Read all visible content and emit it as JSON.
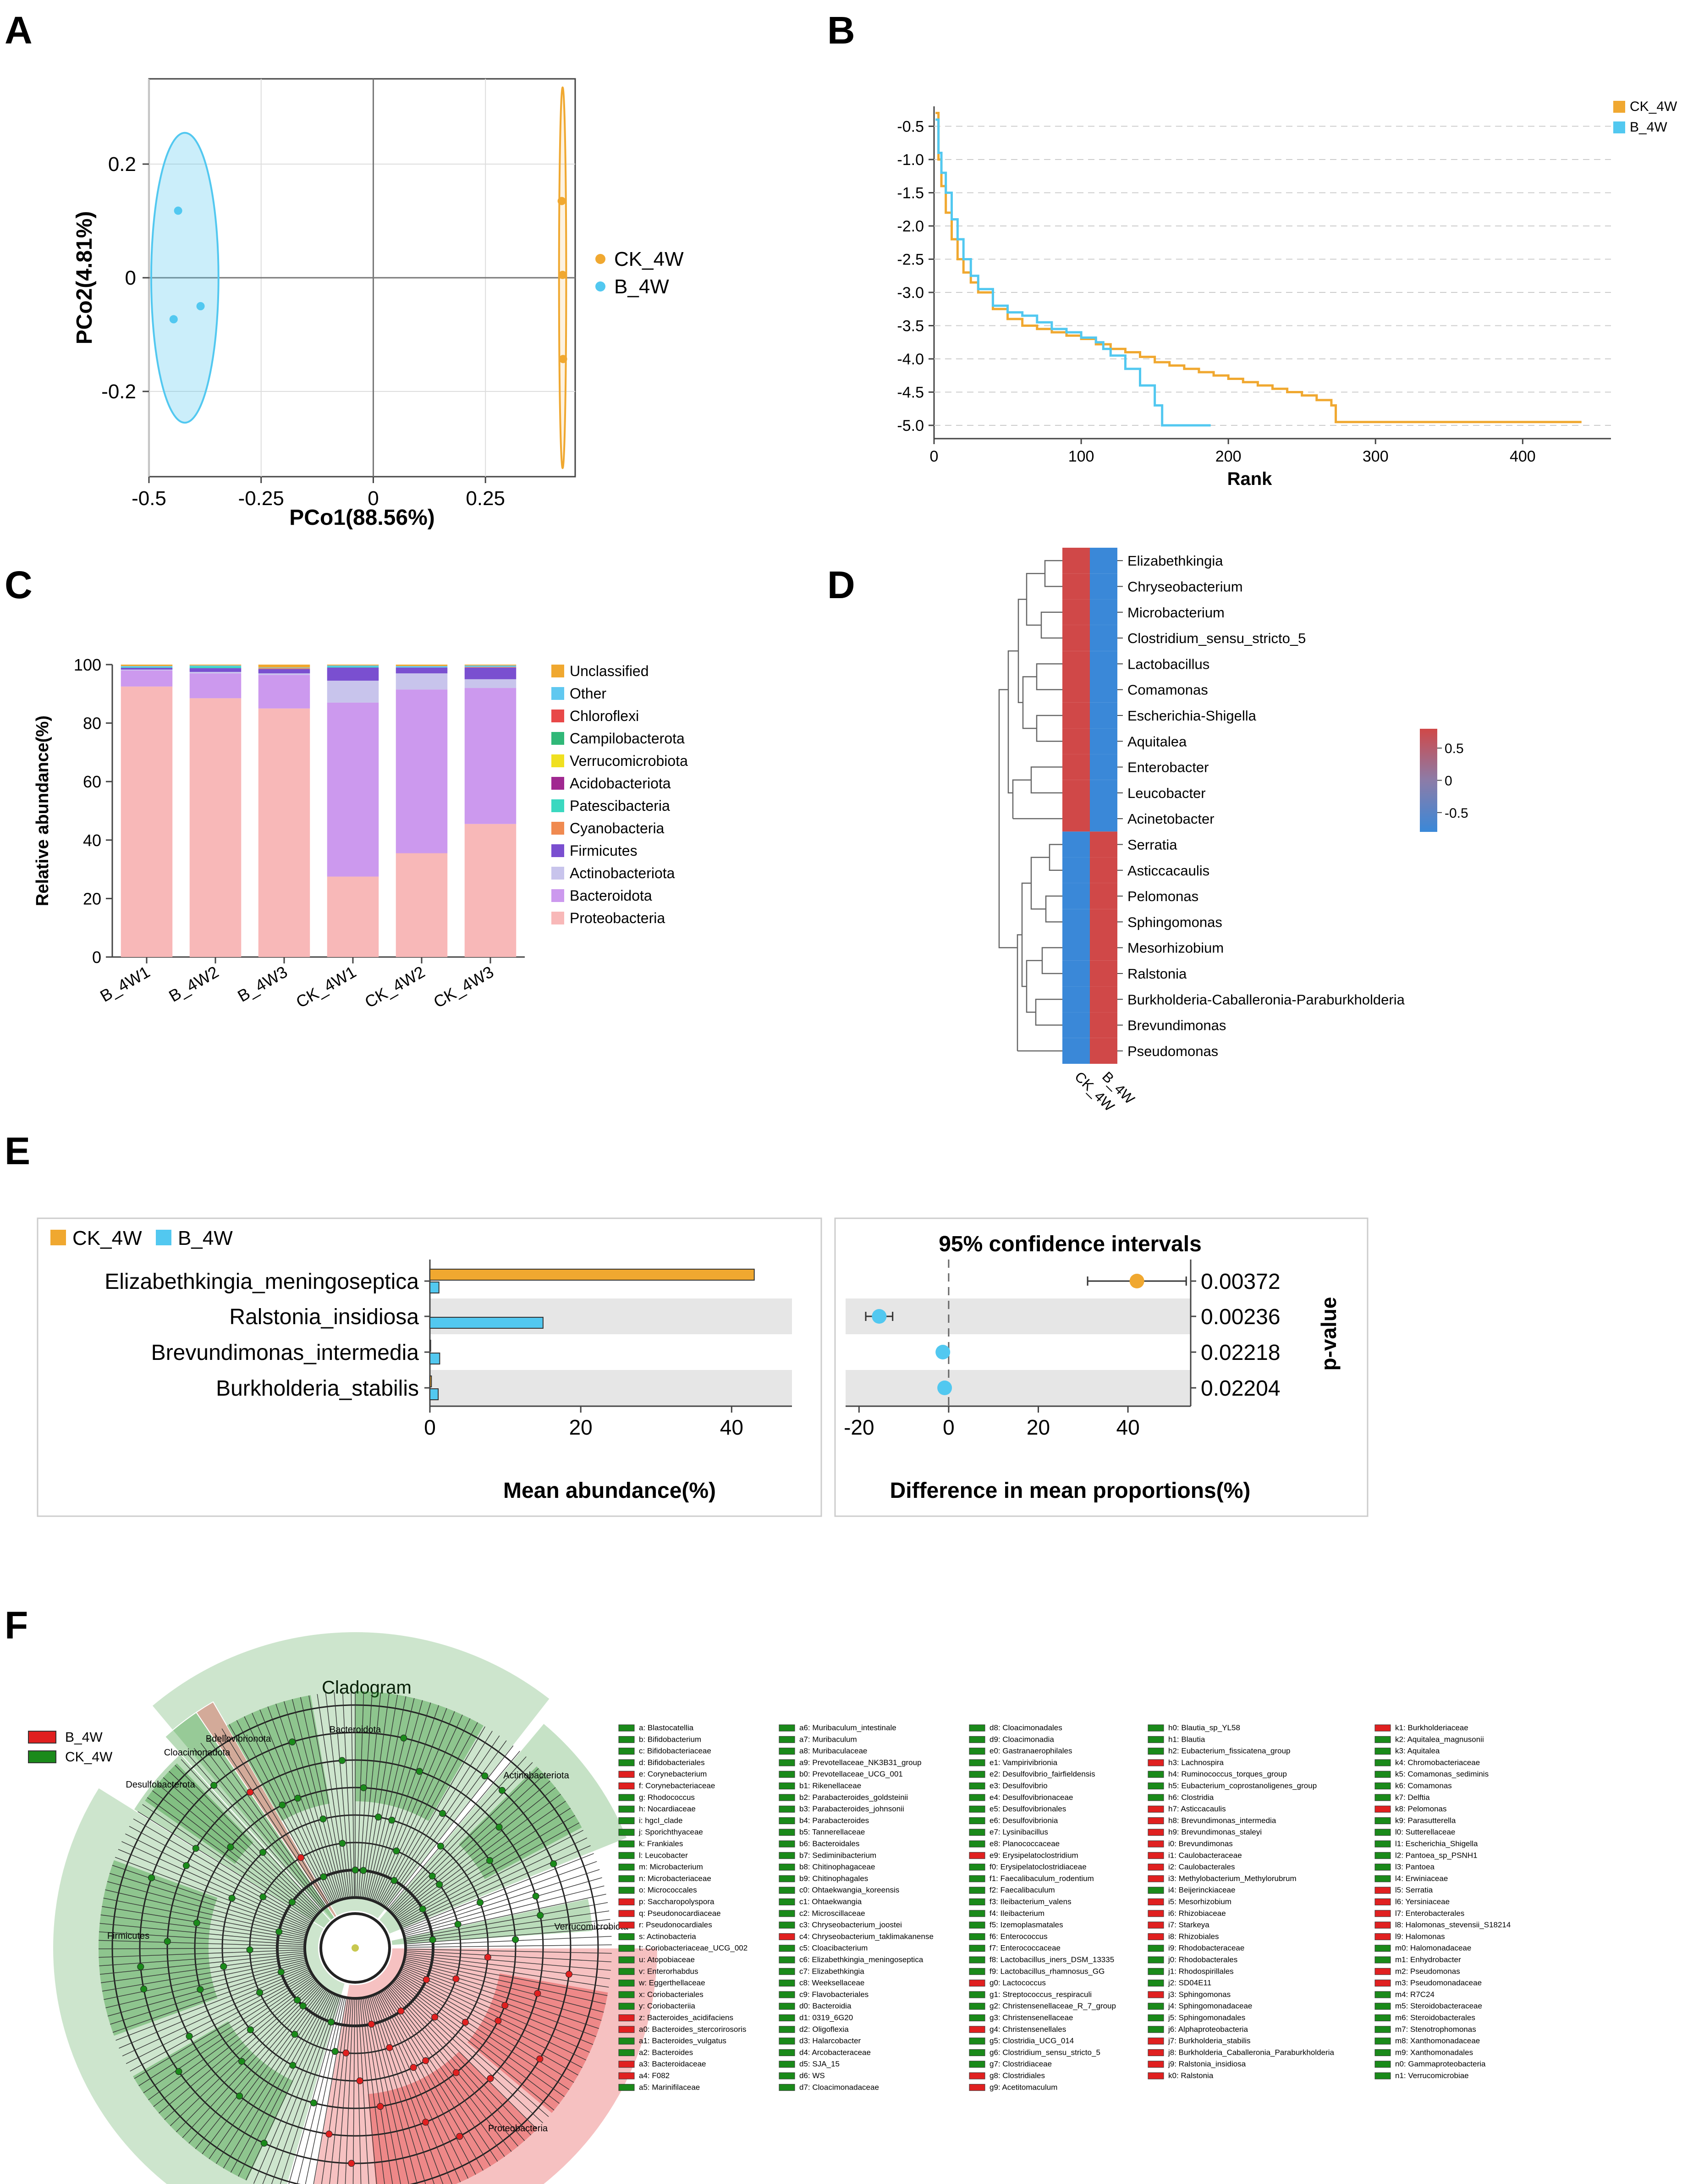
{
  "panels": {
    "a": "A",
    "b": "B",
    "c": "C",
    "d": "D",
    "e": "E",
    "f": "F"
  },
  "chart_data": [
    {
      "id": "A",
      "type": "scatter",
      "xlabel": "PCo1(88.56%)",
      "ylabel": "PCo2(4.81%)",
      "xlim": [
        -0.5,
        0.45
      ],
      "ylim": [
        -0.35,
        0.35
      ],
      "xticks": [
        "-0.5",
        "-0.25",
        "0",
        "0.25"
      ],
      "xtick_values": [
        -0.5,
        -0.25,
        0,
        0.25
      ],
      "yticks": [
        "0.2",
        "0",
        "-0.2"
      ],
      "ytick_values": [
        0.2,
        0,
        -0.2
      ],
      "series": [
        {
          "name": "CK_4W",
          "color": "#f0a830",
          "points": [
            [
              0.42,
              0.135
            ],
            [
              0.422,
              0.005
            ],
            [
              0.423,
              -0.143
            ]
          ],
          "ellipse": {
            "cx": 0.422,
            "cy": 0.0,
            "rx": 0.008,
            "ry": 0.335
          }
        },
        {
          "name": "B_4W",
          "color": "#52c8f0",
          "points": [
            [
              -0.435,
              0.118
            ],
            [
              -0.385,
              -0.05
            ],
            [
              -0.445,
              -0.073
            ]
          ],
          "ellipse": {
            "cx": -0.42,
            "cy": 0.0,
            "rx": 0.075,
            "ry": 0.255
          }
        }
      ]
    },
    {
      "id": "B",
      "type": "line",
      "xlabel": "Rank",
      "ylabel": "",
      "xlim": [
        0,
        460
      ],
      "ylim": [
        -5.2,
        -0.2
      ],
      "xticks": [
        "0",
        "100",
        "200",
        "300",
        "400"
      ],
      "xtick_values": [
        0,
        100,
        200,
        300,
        400
      ],
      "yticks": [
        "-0.5",
        "-1.0",
        "-1.5",
        "-2.0",
        "-2.5",
        "-3.0",
        "-3.5",
        "-4.0",
        "-4.5",
        "-5.0"
      ],
      "ytick_values": [
        -0.5,
        -1.0,
        -1.5,
        -2.0,
        -2.5,
        -3.0,
        -3.5,
        -4.0,
        -4.5,
        -5.0
      ],
      "series": [
        {
          "name": "CK_4W",
          "color": "#f0a830",
          "x": [
            1,
            3,
            5,
            8,
            12,
            16,
            20,
            25,
            30,
            40,
            50,
            60,
            70,
            80,
            90,
            100,
            110,
            120,
            130,
            140,
            150,
            160,
            170,
            180,
            190,
            200,
            210,
            220,
            230,
            240,
            250,
            260,
            270,
            273,
            280,
            300,
            350,
            400,
            440
          ],
          "y": [
            -0.3,
            -1.0,
            -1.4,
            -1.8,
            -2.2,
            -2.5,
            -2.7,
            -2.85,
            -3.0,
            -3.25,
            -3.4,
            -3.5,
            -3.55,
            -3.6,
            -3.65,
            -3.7,
            -3.78,
            -3.85,
            -3.9,
            -3.97,
            -4.05,
            -4.1,
            -4.15,
            -4.2,
            -4.25,
            -4.3,
            -4.35,
            -4.4,
            -4.45,
            -4.5,
            -4.55,
            -4.62,
            -4.7,
            -4.95,
            -4.95,
            -4.95,
            -4.95,
            -4.95,
            -4.95
          ]
        },
        {
          "name": "B_4W",
          "color": "#52c8f0",
          "x": [
            1,
            3,
            5,
            8,
            12,
            16,
            20,
            25,
            30,
            40,
            50,
            60,
            70,
            80,
            90,
            100,
            110,
            115,
            120,
            130,
            140,
            150,
            155,
            160,
            170,
            180,
            188
          ],
          "y": [
            -0.4,
            -0.9,
            -1.2,
            -1.5,
            -1.9,
            -2.2,
            -2.5,
            -2.75,
            -2.95,
            -3.2,
            -3.3,
            -3.35,
            -3.45,
            -3.55,
            -3.6,
            -3.68,
            -3.75,
            -3.85,
            -3.95,
            -4.15,
            -4.4,
            -4.7,
            -5.0,
            -5.0,
            -5.0,
            -5.0,
            -5.0
          ]
        }
      ]
    },
    {
      "id": "C",
      "type": "bar",
      "stacked": true,
      "ylabel": "Relative abundance(%)",
      "ylim": [
        0,
        100
      ],
      "yticks": [
        "0",
        "20",
        "40",
        "60",
        "80",
        "100"
      ],
      "ytick_values": [
        0,
        20,
        40,
        60,
        80,
        100
      ],
      "categories": [
        "B_4W1",
        "B_4W2",
        "B_4W3",
        "CK_4W1",
        "CK_4W2",
        "CK_4W3"
      ],
      "series": [
        {
          "name": "Proteobacteria",
          "color": "#f8b8b8",
          "values": [
            92.5,
            88.5,
            85,
            27.5,
            35.5,
            45.5
          ]
        },
        {
          "name": "Bacteroidota",
          "color": "#cc99ee",
          "values": [
            5.5,
            8.5,
            11.5,
            59.5,
            56,
            46.5
          ]
        },
        {
          "name": "Actinobacteriota",
          "color": "#c8c4ec",
          "values": [
            0.3,
            0.5,
            0.5,
            7.5,
            5.5,
            3
          ]
        },
        {
          "name": "Firmicutes",
          "color": "#7a4fd0",
          "values": [
            0.6,
            1.3,
            1.5,
            4.5,
            2,
            4
          ]
        },
        {
          "name": "Cyanobacteria",
          "color": "#f08a50",
          "values": [
            0,
            0,
            0.3,
            0,
            0,
            0.2
          ]
        },
        {
          "name": "Patescibacteria",
          "color": "#3ad8c0",
          "values": [
            0.2,
            0.6,
            0,
            0.3,
            0,
            0
          ]
        },
        {
          "name": "Acidobacteriota",
          "color": "#a02890",
          "values": [
            0,
            0,
            0,
            0,
            0,
            0
          ]
        },
        {
          "name": "Verrucomicrobiota",
          "color": "#f0e020",
          "values": [
            0,
            0,
            0,
            0,
            0,
            0
          ]
        },
        {
          "name": "Campilobacterota",
          "color": "#30b878",
          "values": [
            0,
            0,
            0,
            0,
            0,
            0
          ]
        },
        {
          "name": "Chloroflexi",
          "color": "#e84848",
          "values": [
            0,
            0,
            0,
            0,
            0,
            0
          ]
        },
        {
          "name": "Other",
          "color": "#60c8f0",
          "values": [
            0.4,
            0.3,
            0.2,
            0.4,
            0.5,
            0.5
          ]
        },
        {
          "name": "Unclassified",
          "color": "#f0a830",
          "values": [
            0.5,
            0.3,
            1,
            0.3,
            0.5,
            0.3
          ]
        }
      ],
      "legend_order": [
        "Unclassified",
        "Other",
        "Chloroflexi",
        "Campilobacterota",
        "Verrucomicrobiota",
        "Acidobacteriota",
        "Patescibacteria",
        "Cyanobacteria",
        "Firmicutes",
        "Actinobacteriota",
        "Bacteroidota",
        "Proteobacteria"
      ]
    },
    {
      "id": "D",
      "type": "heatmap",
      "columns": [
        "CK_4W",
        "B_4W"
      ],
      "rows": [
        "Elizabethkingia",
        "Chryseobacterium",
        "Microbacterium",
        "Clostridium_sensu_stricto_5",
        "Lactobacillus",
        "Comamonas",
        "Escherichia-Shigella",
        "Aquitalea",
        "Enterobacter",
        "Leucobacter",
        "Acinetobacter",
        "Serratia",
        "Asticcacaulis",
        "Pelomonas",
        "Sphingomonas",
        "Mesorhizobium",
        "Ralstonia",
        "Burkholderia-Caballeronia-Paraburkholderia",
        "Brevundimonas",
        "Pseudomonas"
      ],
      "values": [
        [
          0.7,
          -0.7
        ],
        [
          0.7,
          -0.7
        ],
        [
          0.7,
          -0.7
        ],
        [
          0.7,
          -0.7
        ],
        [
          0.7,
          -0.7
        ],
        [
          0.7,
          -0.7
        ],
        [
          0.7,
          -0.7
        ],
        [
          0.7,
          -0.7
        ],
        [
          0.7,
          -0.7
        ],
        [
          0.7,
          -0.7
        ],
        [
          0.7,
          -0.7
        ],
        [
          -0.7,
          0.7
        ],
        [
          -0.7,
          0.7
        ],
        [
          -0.7,
          0.7
        ],
        [
          -0.7,
          0.7
        ],
        [
          -0.7,
          0.7
        ],
        [
          -0.7,
          0.7
        ],
        [
          -0.7,
          0.7
        ],
        [
          -0.7,
          0.7
        ],
        [
          -0.7,
          0.7
        ]
      ],
      "colorbar": {
        "ticks": [
          "0.5",
          "0",
          "-0.5"
        ],
        "tick_values": [
          0.5,
          0,
          -0.5
        ],
        "high": "#d04848",
        "low": "#3a88d8"
      }
    },
    {
      "id": "E",
      "type": "bar",
      "orientation": "horizontal",
      "legend": [
        "CK_4W",
        "B_4W"
      ],
      "categories": [
        "Elizabethkingia_meningoseptica",
        "Ralstonia_insidiosa",
        "Brevundimonas_intermedia",
        "Burkholderia_stabilis"
      ],
      "series": [
        {
          "name": "CK_4W",
          "color": "#f0a830",
          "values": [
            43,
            0,
            0.1,
            0.2
          ]
        },
        {
          "name": "B_4W",
          "color": "#52c8f0",
          "values": [
            1.2,
            15,
            1.3,
            1.1
          ]
        }
      ],
      "xlabel": "Mean abundance(%)",
      "xlim": [
        0,
        48
      ],
      "xticks": [
        "0",
        "20",
        "40"
      ],
      "xtick_values": [
        0,
        20,
        40
      ],
      "ci": {
        "title": "95% confidence intervals",
        "xlabel": "Difference in mean proportions(%)",
        "xlim": [
          -23,
          54
        ],
        "xticks": [
          "-20",
          "0",
          "20",
          "40"
        ],
        "xtick_values": [
          -20,
          0,
          20,
          40
        ],
        "diff": [
          42,
          -15.5,
          -1.3,
          -0.9
        ],
        "lower": [
          31,
          -18.5,
          -2.0,
          -1.5
        ],
        "upper": [
          53,
          -12.5,
          -0.6,
          -0.3
        ],
        "colors": [
          "#f0a830",
          "#52c8f0",
          "#52c8f0",
          "#52c8f0"
        ],
        "pvalues": [
          "0.00372",
          "0.00236",
          "0.02218",
          "0.02204"
        ],
        "pvalue_label": "p-value"
      }
    },
    {
      "id": "F",
      "type": "cladogram",
      "title": "Cladogram",
      "legend": [
        {
          "name": "B_4W",
          "color": "#e02020"
        },
        {
          "name": "CK_4W",
          "color": "#1a8a1a"
        }
      ],
      "clade_labels": [
        "Bacteroidota",
        "Bdellovibrionota",
        "Cloacimonadota",
        "Desulfobacterota",
        "Actinobacteriota",
        "Firmicutes",
        "Verrucomicrobiota",
        "Proteobacteria"
      ]
    }
  ],
  "cladogram_key": [
    [
      "a: Blastocatellia",
      "b: Bifidobacterium",
      "c: Bifidobacteriaceae",
      "d: Bifidobacteriales",
      "e: Corynebacterium",
      "f: Corynebacteriaceae",
      "g: Rhodococcus",
      "h: Nocardiaceae",
      "i: hgcI_clade",
      "j: Sporichthyaceae",
      "k: Frankiales",
      "l: Leucobacter",
      "m: Microbacterium",
      "n: Microbacteriaceae",
      "o: Micrococcales",
      "p: Saccharopolyspora",
      "q: Pseudonocardiaceae",
      "r: Pseudonocardiales",
      "s: Actinobacteria",
      "t: Coriobacteriaceae_UCG_002",
      "u: Atopobiaceae",
      "v: Enterorhabdus",
      "w: Eggerthellaceae",
      "x: Coriobacteriales",
      "y: Coriobacteriia",
      "z: Bacteroides_acidifaciens",
      "a0: Bacteroides_stercorirosoris",
      "a1: Bacteroides_vulgatus",
      "a2: Bacteroides",
      "a3: Bacteroidaceae",
      "a4: F082",
      "a5: Marinifilaceae"
    ],
    [
      "a6: Muribaculum_intestinale",
      "a7: Muribaculum",
      "a8: Muribaculaceae",
      "a9: Prevotellaceae_NK3B31_group",
      "b0: Prevotellaceae_UCG_001",
      "b1: Rikenellaceae",
      "b2: Parabacteroides_goldsteinii",
      "b3: Parabacteroides_johnsonii",
      "b4: Parabacteroides",
      "b5: Tannerellaceae",
      "b6: Bacteroidales",
      "b7: Sediminibacterium",
      "b8: Chitinophagaceae",
      "b9: Chitinophagales",
      "c0: Ohtaekwangia_koreensis",
      "c1: Ohtaekwangia",
      "c2: Microscillaceae",
      "c3: Chryseobacterium_joostei",
      "c4: Chryseobacterium_taklimakanense",
      "c5: Cloacibacterium",
      "c6: Elizabethkingia_meningoseptica",
      "c7: Elizabethkingia",
      "c8: Weeksellaceae",
      "c9: Flavobacteriales",
      "d0: Bacteroidia",
      "d1: 0319_6G20",
      "d2: Oligoflexia",
      "d3: Halarcobacter",
      "d4: Arcobacteraceae",
      "d5: SJA_15",
      "d6: WS",
      "d7: Cloacimonadaceae"
    ],
    [
      "d8: Cloacimonadales",
      "d9: Cloacimonadia",
      "e0: Gastranaerophilales",
      "e1: Vampirivibrionia",
      "e2: Desulfovibrio_fairfieldensis",
      "e3: Desulfovibrio",
      "e4: Desulfovibrionaceae",
      "e5: Desulfovibrionales",
      "e6: Desulfovibrionia",
      "e7: Lysinibacillus",
      "e8: Planococcaceae",
      "e9: Erysipelatoclostridium",
      "f0: Erysipelatoclostridiaceae",
      "f1: Faecalibaculum_rodentium",
      "f2: Faecalibaculum",
      "f3: Ileibacterium_valens",
      "f4: Ileibacterium",
      "f5: Izemoplasmatales",
      "f6: Enterococcus",
      "f7: Enterococcaceae",
      "f8: Lactobacillus_iners_DSM_13335",
      "f9: Lactobacillus_rhamnosus_GG",
      "g0: Lactococcus",
      "g1: Streptococcus_respiraculi",
      "g2: Christensenellaceae_R_7_group",
      "g3: Christensenellaceae",
      "g4: Christensenellales",
      "g5: Clostridia_UCG_014",
      "g6: Clostridium_sensu_stricto_5",
      "g7: Clostridiaceae",
      "g8: Clostridiales",
      "g9: Acetitomaculum"
    ],
    [
      "h0: Blautia_sp_YL58",
      "h1: Blautia",
      "h2: Eubacterium_fissicatena_group",
      "h3: Lachnospira",
      "h4: Ruminococcus_torques_group",
      "h5: Eubacterium_coprostanoligenes_group",
      "h6: Clostridia",
      "h7: Asticcacaulis",
      "h8: Brevundimonas_intermedia",
      "h9: Brevundimonas_staleyi",
      "i0: Brevundimonas",
      "i1: Caulobacteraceae",
      "i2: Caulobacterales",
      "i3: Methylobacterium_Methylorubrum",
      "i4: Beijerinckiaceae",
      "i5: Mesorhizobium",
      "i6: Rhizobiaceae",
      "i7: Starkeya",
      "i8: Rhizobiales",
      "i9: Rhodobacteraceae",
      "j0: Rhodobacterales",
      "j1: Rhodospirillales",
      "j2: SD04E11",
      "j3: Sphingomonas",
      "j4: Sphingomonadaceae",
      "j5: Sphingomonadales",
      "j6: Alphaproteobacteria",
      "j7: Burkholderia_stabilis",
      "j8: Burkholderia_Caballeronia_Paraburkholderia",
      "j9: Ralstonia_insidiosa",
      "k0: Ralstonia"
    ],
    [
      "k1: Burkholderiaceae",
      "k2: Aquitalea_magnusonii",
      "k3: Aquitalea",
      "k4: Chromobacteriaceae",
      "k5: Comamonas_sediminis",
      "k6: Comamonas",
      "k7: Delftia",
      "k8: Pelomonas",
      "k9: Parasutterella",
      "l0: Sutterellaceae",
      "l1: Escherichia_Shigella",
      "l2: Pantoea_sp_PSNH1",
      "l3: Pantoea",
      "l4: Erwiniaceae",
      "l5: Serratia",
      "l6: Yersiniaceae",
      "l7: Enterobacterales",
      "l8: Halomonas_stevensii_S18214",
      "l9: Halomonas",
      "m0: Halomonadaceae",
      "m1: Enhydrobacter",
      "m2: Pseudomonas",
      "m3: Pseudomonadaceae",
      "m4: R7C24",
      "m5: Steroidobacteraceae",
      "m6: Steroidobacterales",
      "m7: Stenotrophomonas",
      "m8: Xanthomonadaceae",
      "m9: Xanthomonadales",
      "n0: Gammaproteobacteria",
      "n1: Verrucomicrobiae"
    ]
  ],
  "cladogram_key_colors": [
    [
      "g",
      "g",
      "g",
      "g",
      "r",
      "r",
      "g",
      "g",
      "g",
      "g",
      "g",
      "g",
      "g",
      "g",
      "g",
      "r",
      "r",
      "r",
      "g",
      "g",
      "g",
      "g",
      "g",
      "g",
      "g",
      "r",
      "r",
      "g",
      "g",
      "r",
      "r",
      "g"
    ],
    [
      "g",
      "g",
      "g",
      "g",
      "g",
      "g",
      "g",
      "g",
      "g",
      "g",
      "g",
      "g",
      "g",
      "g",
      "g",
      "g",
      "g",
      "g",
      "r",
      "g",
      "g",
      "g",
      "g",
      "g",
      "g",
      "g",
      "g",
      "g",
      "g",
      "g",
      "g",
      "g"
    ],
    [
      "g",
      "g",
      "g",
      "g",
      "g",
      "g",
      "g",
      "g",
      "g",
      "g",
      "g",
      "r",
      "g",
      "g",
      "g",
      "g",
      "g",
      "g",
      "g",
      "g",
      "g",
      "g",
      "r",
      "g",
      "g",
      "g",
      "r",
      "g",
      "g",
      "g",
      "r",
      "r"
    ],
    [
      "g",
      "g",
      "g",
      "r",
      "g",
      "g",
      "g",
      "r",
      "r",
      "r",
      "r",
      "r",
      "r",
      "r",
      "g",
      "r",
      "r",
      "r",
      "r",
      "g",
      "g",
      "g",
      "g",
      "r",
      "g",
      "g",
      "g",
      "r",
      "r",
      "r",
      "r"
    ],
    [
      "r",
      "g",
      "g",
      "g",
      "g",
      "g",
      "g",
      "r",
      "g",
      "g",
      "g",
      "g",
      "g",
      "g",
      "r",
      "r",
      "r",
      "r",
      "r",
      "g",
      "g",
      "r",
      "r",
      "g",
      "g",
      "g",
      "g",
      "g",
      "g",
      "g",
      "g"
    ]
  ]
}
